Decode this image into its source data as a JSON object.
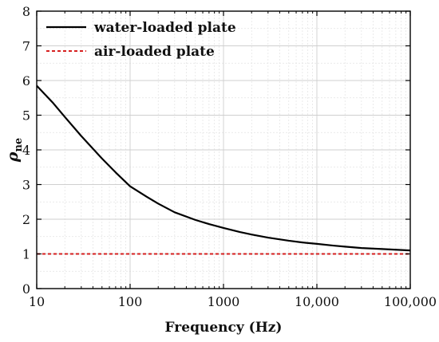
{
  "chart_data": {
    "type": "line",
    "xlabel": "Frequency (Hz)",
    "ylabel": {
      "symbol": "ρ",
      "subscript": "ne"
    },
    "x_scale": "log",
    "xlim": [
      10,
      100000
    ],
    "ylim": [
      0,
      8
    ],
    "x_ticks": [
      {
        "value": 10,
        "label": "10"
      },
      {
        "value": 100,
        "label": "100"
      },
      {
        "value": 1000,
        "label": "1000"
      },
      {
        "value": 10000,
        "label": "10,000"
      },
      {
        "value": 100000,
        "label": "100,000"
      }
    ],
    "y_ticks": [
      {
        "value": 0,
        "label": "0"
      },
      {
        "value": 1,
        "label": "1"
      },
      {
        "value": 2,
        "label": "2"
      },
      {
        "value": 3,
        "label": "3"
      },
      {
        "value": 4,
        "label": "4"
      },
      {
        "value": 5,
        "label": "5"
      },
      {
        "value": 6,
        "label": "6"
      },
      {
        "value": 7,
        "label": "7"
      },
      {
        "value": 8,
        "label": "8"
      }
    ],
    "grid": true,
    "legend_position": "top-left",
    "series": [
      {
        "name": "water-loaded plate",
        "color": "#000000",
        "style": "solid",
        "x": [
          10,
          15,
          20,
          30,
          50,
          70,
          100,
          150,
          200,
          300,
          500,
          700,
          1000,
          1500,
          2000,
          3000,
          5000,
          7000,
          10000,
          15000,
          20000,
          30000,
          50000,
          70000,
          100000
        ],
        "y": [
          5.85,
          5.35,
          4.95,
          4.4,
          3.75,
          3.35,
          2.95,
          2.65,
          2.45,
          2.2,
          1.98,
          1.86,
          1.75,
          1.63,
          1.56,
          1.47,
          1.38,
          1.33,
          1.29,
          1.24,
          1.21,
          1.17,
          1.14,
          1.12,
          1.1
        ]
      },
      {
        "name": "air-loaded plate",
        "color": "#d62020",
        "style": "dashed",
        "x": [
          10,
          100000
        ],
        "y": [
          1.0,
          1.0
        ]
      }
    ]
  }
}
